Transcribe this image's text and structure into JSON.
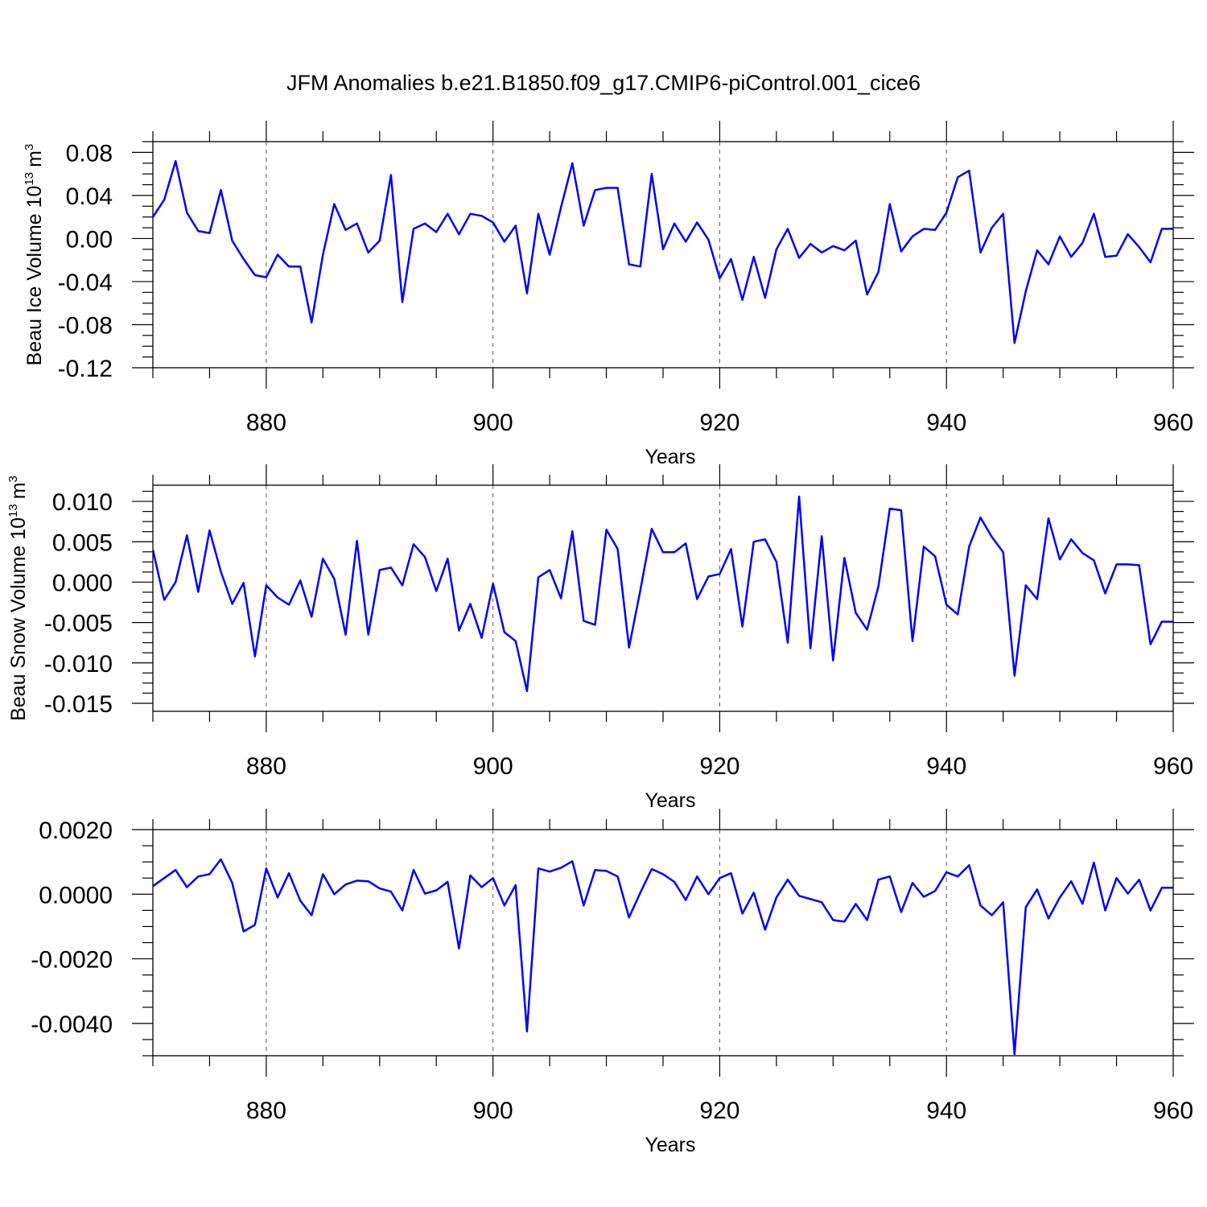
{
  "title": "JFM Anomalies b.e21.B1850.f09_g17.CMIP6-piControl.001_cice6",
  "colors": {
    "line": "#0000ff",
    "axis": "#000000",
    "grid": "#555555"
  },
  "chart_data": [
    {
      "type": "line",
      "xlabel": "Years",
      "ylabel_main": "Beau Ice Volume 10",
      "ylabel_exp": "13",
      "ylabel_unit": "m",
      "ylabel_unit_exp": "3",
      "xlim": [
        870,
        960
      ],
      "ylim": [
        -0.12,
        0.09
      ],
      "x_ticks": [
        880,
        900,
        920,
        940,
        960
      ],
      "y_ticks": [
        0.08,
        0.04,
        0.0,
        -0.04,
        -0.08,
        -0.12
      ],
      "y_tick_labels": [
        "0.08",
        "0.04",
        "0.00",
        "-0.04",
        "-0.08",
        "-0.12"
      ],
      "x_tick_labels": [
        "880",
        "900",
        "920",
        "940",
        "960"
      ],
      "x": [
        870,
        871,
        872,
        873,
        874,
        875,
        876,
        877,
        878,
        879,
        880,
        881,
        882,
        883,
        884,
        885,
        886,
        887,
        888,
        889,
        890,
        891,
        892,
        893,
        894,
        895,
        896,
        897,
        898,
        899,
        900,
        901,
        902,
        903,
        904,
        905,
        906,
        907,
        908,
        909,
        910,
        911,
        912,
        913,
        914,
        915,
        916,
        917,
        918,
        919,
        920,
        921,
        922,
        923,
        924,
        925,
        926,
        927,
        928,
        929,
        930,
        931,
        932,
        933,
        934,
        935,
        936,
        937,
        938,
        939,
        940,
        941,
        942,
        943,
        944,
        945,
        946,
        947,
        948,
        949,
        950,
        951,
        952,
        953,
        954,
        955,
        956,
        957,
        958,
        959,
        960
      ],
      "values": [
        0.02,
        0.036,
        0.072,
        0.024,
        0.007,
        0.005,
        0.045,
        -0.002,
        -0.019,
        -0.034,
        -0.036,
        -0.015,
        -0.026,
        -0.026,
        -0.078,
        -0.015,
        0.032,
        0.008,
        0.014,
        -0.013,
        -0.002,
        0.059,
        -0.059,
        0.009,
        0.014,
        0.006,
        0.023,
        0.004,
        0.023,
        0.021,
        0.015,
        -0.003,
        0.012,
        -0.051,
        0.023,
        -0.015,
        0.029,
        0.07,
        0.012,
        0.045,
        0.047,
        0.047,
        -0.024,
        -0.026,
        0.06,
        -0.01,
        0.014,
        -0.003,
        0.015,
        -0.001,
        -0.037,
        -0.019,
        -0.057,
        -0.017,
        -0.055,
        -0.01,
        0.009,
        -0.018,
        -0.005,
        -0.013,
        -0.007,
        -0.011,
        -0.002,
        -0.052,
        -0.031,
        0.032,
        -0.012,
        0.002,
        0.009,
        0.008,
        0.024,
        0.057,
        0.063,
        -0.013,
        0.01,
        0.023,
        -0.097,
        -0.049,
        -0.011,
        -0.024,
        0.002,
        -0.017,
        -0.004,
        0.023,
        -0.017,
        -0.016,
        0.004,
        -0.008,
        -0.022,
        0.009,
        0.009
      ]
    },
    {
      "type": "line",
      "xlabel": "Years",
      "ylabel_main": "Beau Snow Volume 10",
      "ylabel_exp": "13",
      "ylabel_unit": "m",
      "ylabel_unit_exp": "3",
      "xlim": [
        870,
        960
      ],
      "ylim": [
        -0.016,
        0.012
      ],
      "x_ticks": [
        880,
        900,
        920,
        940,
        960
      ],
      "y_ticks": [
        0.01,
        0.005,
        0.0,
        -0.005,
        -0.01,
        -0.015
      ],
      "y_tick_labels": [
        "0.010",
        "0.005",
        "0.000",
        "-0.005",
        "-0.010",
        "-0.015"
      ],
      "x_tick_labels": [
        "880",
        "900",
        "920",
        "940",
        "960"
      ],
      "x": [
        870,
        871,
        872,
        873,
        874,
        875,
        876,
        877,
        878,
        879,
        880,
        881,
        882,
        883,
        884,
        885,
        886,
        887,
        888,
        889,
        890,
        891,
        892,
        893,
        894,
        895,
        896,
        897,
        898,
        899,
        900,
        901,
        902,
        903,
        904,
        905,
        906,
        907,
        908,
        909,
        910,
        911,
        912,
        913,
        914,
        915,
        916,
        917,
        918,
        919,
        920,
        921,
        922,
        923,
        924,
        925,
        926,
        927,
        928,
        929,
        930,
        931,
        932,
        933,
        934,
        935,
        936,
        937,
        938,
        939,
        940,
        941,
        942,
        943,
        944,
        945,
        946,
        947,
        948,
        949,
        950,
        951,
        952,
        953,
        954,
        955,
        956,
        957,
        958,
        959,
        960
      ],
      "values": [
        0.004,
        -0.0022,
        0.0,
        0.0058,
        -0.0012,
        0.0064,
        0.0013,
        -0.0027,
        -0.0001,
        -0.0092,
        -0.0004,
        -0.0019,
        -0.0028,
        0.0002,
        -0.0043,
        0.0029,
        0.0004,
        -0.0065,
        0.0051,
        -0.0065,
        0.0015,
        0.0018,
        -0.0004,
        0.0047,
        0.0031,
        -0.0011,
        0.0029,
        -0.006,
        -0.0027,
        -0.0069,
        -0.0002,
        -0.0062,
        -0.0073,
        -0.0135,
        0.0006,
        0.0015,
        -0.002,
        0.0063,
        -0.0048,
        -0.0053,
        0.0065,
        0.0041,
        -0.0081,
        -0.001,
        0.0066,
        0.0037,
        0.0037,
        0.0048,
        -0.0021,
        0.0007,
        0.001,
        0.0041,
        -0.0055,
        0.005,
        0.0053,
        0.0025,
        -0.0075,
        0.0106,
        -0.0082,
        0.0057,
        -0.0097,
        0.003,
        -0.0038,
        -0.0059,
        -0.0005,
        0.0091,
        0.0089,
        -0.0073,
        0.0044,
        0.0032,
        -0.0028,
        -0.004,
        0.0044,
        0.008,
        0.0056,
        0.0037,
        -0.0116,
        -0.0004,
        -0.0021,
        0.0079,
        0.0028,
        0.0053,
        0.0036,
        0.0027,
        -0.0014,
        0.0022,
        0.0022,
        0.0021,
        -0.0077,
        -0.0049,
        -0.0049
      ]
    },
    {
      "type": "line",
      "xlabel": "Years",
      "xlim": [
        870,
        960
      ],
      "ylim": [
        -0.005,
        0.002
      ],
      "x_ticks": [
        880,
        900,
        920,
        940,
        960
      ],
      "y_ticks": [
        0.002,
        0.0,
        -0.002,
        -0.004
      ],
      "y_tick_labels": [
        "0.0020",
        "0.0000",
        "-0.0020",
        "-0.0040"
      ],
      "x_tick_labels": [
        "880",
        "900",
        "920",
        "940",
        "960"
      ],
      "x": [
        870,
        871,
        872,
        873,
        874,
        875,
        876,
        877,
        878,
        879,
        880,
        881,
        882,
        883,
        884,
        885,
        886,
        887,
        888,
        889,
        890,
        891,
        892,
        893,
        894,
        895,
        896,
        897,
        898,
        899,
        900,
        901,
        902,
        903,
        904,
        905,
        906,
        907,
        908,
        909,
        910,
        911,
        912,
        913,
        914,
        915,
        916,
        917,
        918,
        919,
        920,
        921,
        922,
        923,
        924,
        925,
        926,
        927,
        928,
        929,
        930,
        931,
        932,
        933,
        934,
        935,
        936,
        937,
        938,
        939,
        940,
        941,
        942,
        943,
        944,
        945,
        946,
        947,
        948,
        949,
        950,
        951,
        952,
        953,
        954,
        955,
        956,
        957,
        958,
        959,
        960
      ],
      "values": [
        0.00025,
        0.0005,
        0.00075,
        0.00022,
        0.00055,
        0.00062,
        0.00108,
        0.00035,
        -0.00115,
        -0.00095,
        0.0008,
        -0.0001,
        0.00065,
        -0.0002,
        -0.00065,
        0.00062,
        0.0,
        0.0003,
        0.00042,
        0.0004,
        0.00018,
        8e-05,
        -0.0005,
        0.00075,
        2e-05,
        0.00012,
        0.00038,
        -0.00168,
        0.00058,
        0.00022,
        0.0005,
        -0.00035,
        0.00028,
        -0.00425,
        0.0008,
        0.0007,
        0.00082,
        0.00102,
        -0.00035,
        0.00075,
        0.00072,
        0.00055,
        -0.00072,
        5e-05,
        0.00078,
        0.00062,
        0.00038,
        -0.00018,
        0.00055,
        0.0,
        0.0005,
        0.00065,
        -0.0006,
        5e-05,
        -0.0011,
        -0.0001,
        0.00045,
        -5e-05,
        -0.00015,
        -0.00025,
        -0.0008,
        -0.00085,
        -0.0003,
        -0.0008,
        0.00045,
        0.00055,
        -0.00055,
        0.00035,
        -8e-05,
        0.0001,
        0.00068,
        0.00055,
        0.0009,
        -0.00035,
        -0.00065,
        -0.00025,
        -0.00495,
        -0.0004,
        0.00015,
        -0.00075,
        -0.0001,
        0.0004,
        -0.0003,
        0.00098,
        -0.0005,
        0.0005,
        2e-05,
        0.00045,
        -0.0005,
        0.0002,
        0.0002
      ]
    }
  ]
}
